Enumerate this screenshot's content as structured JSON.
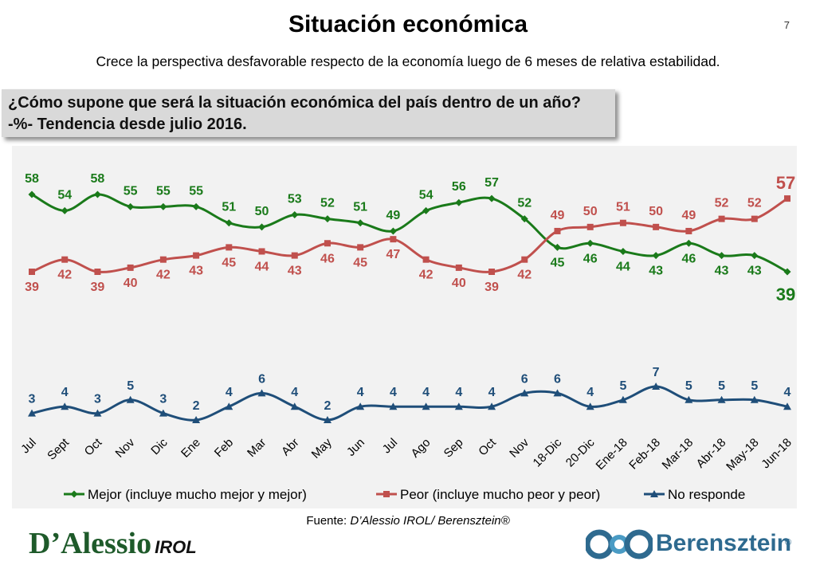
{
  "header": {
    "title": "Situación económica",
    "page_number": "7",
    "subtitle": "Crece la perspectiva desfavorable respecto de la economía luego de 6 meses de relativa estabilidad."
  },
  "question": {
    "line1": "¿Cómo supone que será la situación económica del país dentro de un año?",
    "line2": "-%- Tendencia desde julio 2016."
  },
  "chart_data": {
    "type": "line",
    "categories": [
      "Jul",
      "Sept",
      "Oct",
      "Nov",
      "Dic",
      "Ene",
      "Feb",
      "Mar",
      "Abr",
      "May",
      "Jun",
      "Jul",
      "Ago",
      "Sep",
      "Oct",
      "Nov",
      "18-Dic",
      "20-Dic",
      "Ene-18",
      "Feb-18",
      "Mar-18",
      "Abr-18",
      "May-18",
      "Jun-18"
    ],
    "series": [
      {
        "name": "Mejor (incluye mucho mejor y mejor)",
        "color": "#1a7a1a",
        "marker": "diamond",
        "values": [
          58,
          54,
          58,
          55,
          55,
          55,
          51,
          50,
          53,
          52,
          51,
          49,
          54,
          56,
          57,
          52,
          45,
          46,
          44,
          43,
          46,
          43,
          43,
          39
        ]
      },
      {
        "name": "Peor (incluye mucho peor y peor)",
        "color": "#c0504d",
        "marker": "square",
        "values": [
          39,
          42,
          39,
          40,
          42,
          43,
          45,
          44,
          43,
          46,
          45,
          47,
          42,
          40,
          39,
          42,
          49,
          50,
          51,
          50,
          49,
          52,
          52,
          57
        ]
      },
      {
        "name": "No responde",
        "color": "#1f4e79",
        "marker": "triangle",
        "values": [
          3,
          4,
          3,
          5,
          3,
          2,
          4,
          6,
          4,
          2,
          4,
          4,
          4,
          4,
          4,
          6,
          6,
          4,
          5,
          7,
          5,
          5,
          5,
          4
        ]
      }
    ],
    "legend_position": "bottom",
    "grid": false
  },
  "footer": {
    "source_prefix": "Fuente: ",
    "source_italic": "D’Alessio IROL/ Berensztein®",
    "logo_left_main": "D’Alessio",
    "logo_left_sub": "IROL",
    "logo_right_name": "Berensztein",
    "logo_right_reg": "®"
  }
}
